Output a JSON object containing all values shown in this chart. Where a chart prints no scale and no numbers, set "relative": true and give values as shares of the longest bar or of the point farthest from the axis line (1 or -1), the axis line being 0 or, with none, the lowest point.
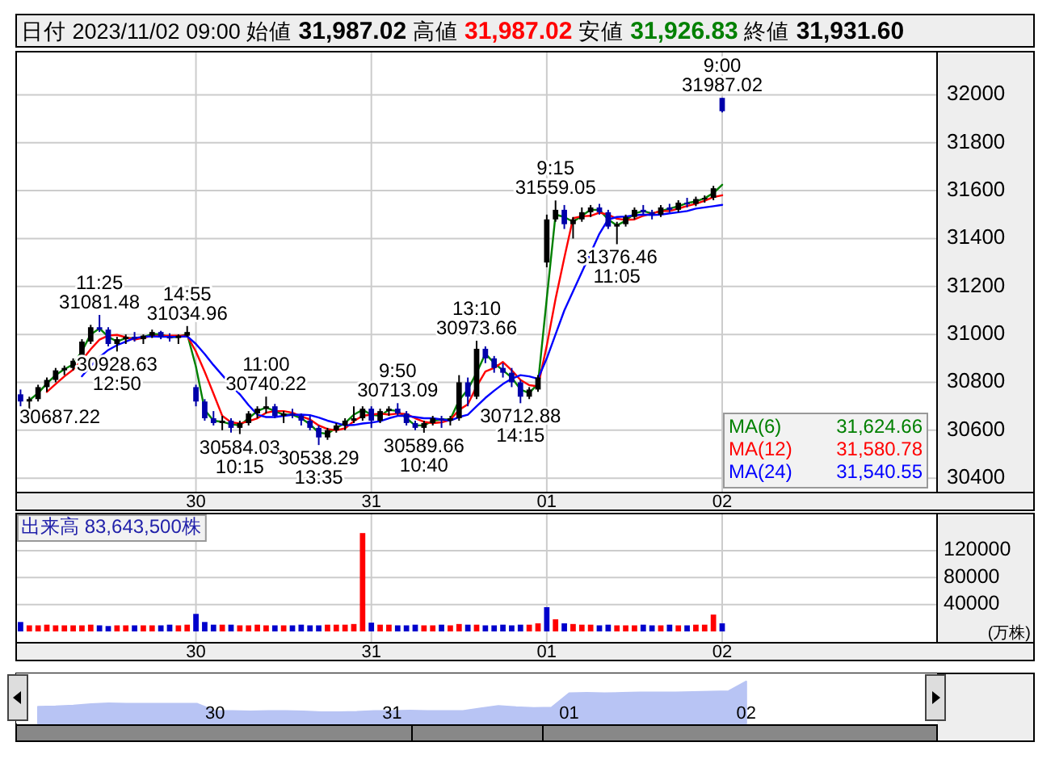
{
  "chart_data": [
    {
      "type": "candlestick",
      "title": "日付 2023/11/02 09:00 始値 31,987.02 高値 31,987.02 安値 31,926.83 終値 31,931.60",
      "categories": [
        null,
        null,
        null,
        null,
        null,
        null,
        null,
        null,
        null,
        null,
        null,
        null,
        null,
        null,
        null,
        null,
        null,
        null,
        null,
        null,
        "30",
        null,
        null,
        null,
        null,
        null,
        null,
        null,
        null,
        null,
        null,
        null,
        null,
        null,
        null,
        null,
        null,
        null,
        null,
        null,
        "31",
        null,
        null,
        null,
        null,
        null,
        null,
        null,
        null,
        null,
        null,
        null,
        null,
        null,
        null,
        null,
        null,
        null,
        null,
        null,
        "01",
        null,
        null,
        null,
        null,
        null,
        null,
        null,
        null,
        null,
        null,
        null,
        null,
        null,
        null,
        null,
        null,
        null,
        null,
        null,
        "02",
        null,
        null,
        null,
        null,
        null,
        null,
        null,
        null,
        null,
        null,
        null,
        null,
        null,
        null,
        null,
        null,
        null,
        null,
        null,
        null,
        null,
        null,
        null,
        null
      ],
      "ohlc": [
        [
          30750,
          30770,
          30700,
          30720
        ],
        [
          30720,
          30740,
          30687.22,
          30730
        ],
        [
          30730,
          30790,
          30720,
          30780
        ],
        [
          30780,
          30820,
          30760,
          30810
        ],
        [
          30810,
          30860,
          30800,
          30850
        ],
        [
          30850,
          30870,
          30830,
          30860
        ],
        [
          30860,
          30900,
          30850,
          30890
        ],
        [
          30890,
          30980,
          30880,
          30970
        ],
        [
          30970,
          31040,
          30960,
          31030
        ],
        [
          31030,
          31081.48,
          31010,
          31020
        ],
        [
          31020,
          31030,
          30950,
          30960
        ],
        [
          30960,
          30990,
          30928.63,
          30980
        ],
        [
          30980,
          31000,
          30960,
          30990
        ],
        [
          30990,
          31010,
          30970,
          30980
        ],
        [
          30980,
          31000,
          30960,
          30995
        ],
        [
          30995,
          31020,
          30985,
          31010
        ],
        [
          31010,
          31015,
          30980,
          30990
        ],
        [
          30990,
          31005,
          30970,
          30985
        ],
        [
          30985,
          31000,
          30960,
          30995
        ],
        [
          30995,
          31034.96,
          30990,
          31010
        ],
        [
          30780,
          30790,
          30700,
          30720
        ],
        [
          30720,
          30730,
          30640,
          30650
        ],
        [
          30650,
          30680,
          30620,
          30630
        ],
        [
          30630,
          30660,
          30600,
          30640
        ],
        [
          30640,
          30650,
          30590,
          30610
        ],
        [
          30610,
          30640,
          30584.03,
          30630
        ],
        [
          30630,
          30680,
          30620,
          30670
        ],
        [
          30670,
          30700,
          30650,
          30690
        ],
        [
          30690,
          30740.22,
          30670,
          30700
        ],
        [
          30700,
          30710,
          30650,
          30660
        ],
        [
          30660,
          30680,
          30630,
          30670
        ],
        [
          30670,
          30690,
          30650,
          30660
        ],
        [
          30660,
          30670,
          30620,
          30640
        ],
        [
          30640,
          30660,
          30600,
          30610
        ],
        [
          30610,
          30620,
          30538.29,
          30570
        ],
        [
          30570,
          30610,
          30560,
          30600
        ],
        [
          30600,
          30630,
          30590,
          30620
        ],
        [
          30620,
          30650,
          30600,
          30640
        ],
        [
          30640,
          30700,
          30630,
          30650
        ],
        [
          30650,
          30700,
          30640,
          30690
        ],
        [
          30690,
          30700,
          30610,
          30640
        ],
        [
          30640,
          30690,
          30630,
          30680
        ],
        [
          30680,
          30700,
          30660,
          30690
        ],
        [
          30690,
          30713.09,
          30660,
          30670
        ],
        [
          30670,
          30680,
          30620,
          30630
        ],
        [
          30630,
          30640,
          30600,
          30610
        ],
        [
          30610,
          30640,
          30589.66,
          30630
        ],
        [
          30630,
          30660,
          30620,
          30650
        ],
        [
          30650,
          30660,
          30610,
          30640
        ],
        [
          30640,
          30660,
          30620,
          30650
        ],
        [
          30650,
          30830,
          30640,
          30800
        ],
        [
          30800,
          30820,
          30700,
          30740
        ],
        [
          30740,
          30973.66,
          30730,
          30940
        ],
        [
          30940,
          30950,
          30880,
          30900
        ],
        [
          30900,
          30910,
          30840,
          30860
        ],
        [
          30860,
          30880,
          30820,
          30840
        ],
        [
          30840,
          30860,
          30780,
          30800
        ],
        [
          30800,
          30810,
          30712.88,
          30740
        ],
        [
          30740,
          30780,
          30730,
          30770
        ],
        [
          30770,
          30830,
          30760,
          30820
        ],
        [
          31300,
          31500,
          31280,
          31480
        ],
        [
          31480,
          31559.05,
          31470,
          31520
        ],
        [
          31520,
          31540,
          31440,
          31460
        ],
        [
          31460,
          31490,
          31400,
          31480
        ],
        [
          31480,
          31530,
          31470,
          31510
        ],
        [
          31510,
          31540,
          31490,
          31530
        ],
        [
          31530,
          31545,
          31500,
          31510
        ],
        [
          31510,
          31520,
          31440,
          31450
        ],
        [
          31450,
          31470,
          31376.46,
          31460
        ],
        [
          31460,
          31500,
          31450,
          31490
        ],
        [
          31490,
          31530,
          31480,
          31520
        ],
        [
          31520,
          31540,
          31500,
          31510
        ],
        [
          31510,
          31520,
          31480,
          31500
        ],
        [
          31500,
          31540,
          31490,
          31530
        ],
        [
          31530,
          31545,
          31510,
          31520
        ],
        [
          31520,
          31560,
          31510,
          31550
        ],
        [
          31550,
          31570,
          31530,
          31545
        ],
        [
          31545,
          31575,
          31535,
          31565
        ],
        [
          31565,
          31580,
          31550,
          31570
        ],
        [
          31570,
          31620,
          31560,
          31610
        ],
        [
          31987.02,
          31987.02,
          31926.83,
          31931.6
        ],
        null,
        null,
        null,
        null,
        null,
        null,
        null,
        null,
        null,
        null,
        null,
        null,
        null,
        null,
        null,
        null,
        null,
        null,
        null,
        null,
        null,
        null,
        null,
        null
      ],
      "colors": [
        "#0000aa",
        "#000000",
        "#000000",
        "#000000",
        "#000000",
        "#000000",
        "#000000",
        "#000000",
        "#000000",
        "#0000aa",
        "#0000aa",
        "#000000",
        "#000000",
        "#0000aa",
        "#000000",
        "#000000",
        "#0000aa",
        "#0000aa",
        "#000000",
        "#000000",
        "#0000aa",
        "#0000aa",
        "#0000aa",
        "#000000",
        "#0000aa",
        "#000000",
        "#000000",
        "#000000",
        "#000000",
        "#0000aa",
        "#000000",
        "#0000aa",
        "#0000aa",
        "#0000aa",
        "#0000aa",
        "#000000",
        "#000000",
        "#000000",
        "#000000",
        "#000000",
        "#0000aa",
        "#000000",
        "#000000",
        "#0000aa",
        "#0000aa",
        "#0000aa",
        "#000000",
        "#000000",
        "#0000aa",
        "#000000",
        "#000000",
        "#0000aa",
        "#000000",
        "#0000aa",
        "#0000aa",
        "#0000aa",
        "#0000aa",
        "#0000aa",
        "#000000",
        "#000000",
        "#000000",
        "#000000",
        "#0000aa",
        "#000000",
        "#000000",
        "#000000",
        "#0000aa",
        "#0000aa",
        "#000000",
        "#000000",
        "#000000",
        "#0000aa",
        "#0000aa",
        "#000000",
        "#0000aa",
        "#000000",
        "#0000aa",
        "#000000",
        "#000000",
        "#000000",
        "#0000aa",
        null,
        null,
        null,
        null,
        null,
        null,
        null,
        null,
        null,
        null,
        null,
        null,
        null,
        null,
        null,
        null,
        null,
        null,
        null,
        null,
        null,
        null,
        null,
        null
      ],
      "series": [
        {
          "type": "line",
          "name": "MA(6) 31,624.66",
          "color": "#008000",
          "values": [
            null,
            30725,
            30755,
            30795,
            30830,
            30855,
            30875,
            30930,
            31000,
            31025,
            30990,
            30970,
            30985,
            30985,
            30988,
            31002,
            31000,
            30988,
            30990,
            31002,
            30865,
            30685,
            30640,
            30635,
            30625,
            30620,
            30650,
            30680,
            30695,
            30680,
            30665,
            30665,
            30650,
            30625,
            30590,
            30585,
            30610,
            30630,
            30665,
            30685,
            30665,
            30660,
            30685,
            30680,
            30650,
            30620,
            30620,
            30640,
            30645,
            30645,
            30725,
            30770,
            30840,
            30920,
            30880,
            30850,
            30820,
            30770,
            30755,
            30795,
            31150,
            31500,
            31490,
            31470,
            31495,
            31520,
            31520,
            31480,
            31455,
            31475,
            31505,
            31515,
            31505,
            31515,
            31525,
            31535,
            31548,
            31555,
            31568,
            31590,
            31624.66,
            null,
            null,
            null,
            null,
            null,
            null,
            null,
            null,
            null,
            null,
            null,
            null,
            null,
            null,
            null,
            null,
            null,
            null,
            null,
            null,
            null,
            null,
            null,
            null
          ]
        },
        {
          "type": "line",
          "name": "MA(12) 31,580.78",
          "color": "#ff0000",
          "values": [
            null,
            null,
            null,
            30760,
            30793,
            30825,
            30853,
            30893,
            30938,
            30978,
            30995,
            30998,
            30988,
            30978,
            30986,
            30994,
            30994,
            30995,
            30995,
            30995,
            30928,
            30844,
            30753,
            30660,
            30633,
            30628,
            30638,
            30650,
            30673,
            30680,
            30680,
            30673,
            30658,
            30645,
            30620,
            30605,
            30600,
            30608,
            30638,
            30660,
            30665,
            30670,
            30665,
            30670,
            30668,
            30650,
            30635,
            30630,
            30633,
            30643,
            30685,
            30708,
            30783,
            30845,
            30860,
            30885,
            30850,
            30810,
            30788,
            30783,
            30953,
            31148,
            31320,
            31485,
            31493,
            31495,
            31508,
            31500,
            31483,
            31478,
            31480,
            31495,
            31505,
            31515,
            31515,
            31525,
            31536,
            31545,
            31558,
            31573,
            31580.78,
            null,
            null,
            null,
            null,
            null,
            null,
            null,
            null,
            null,
            null,
            null,
            null,
            null,
            null,
            null,
            null,
            null,
            null,
            null,
            null,
            null,
            null,
            null,
            null
          ]
        },
        {
          "type": "line",
          "name": "MA(24) 31,540.55",
          "color": "#0000ff",
          "values": [
            null,
            null,
            null,
            null,
            null,
            null,
            null,
            30825,
            30868,
            30905,
            30935,
            30955,
            30970,
            30985,
            30990,
            30992,
            30990,
            30990,
            30990,
            30992,
            30960,
            30918,
            30872,
            30830,
            30788,
            30750,
            30705,
            30665,
            30655,
            30655,
            30660,
            30664,
            30665,
            30663,
            30653,
            30640,
            30630,
            30620,
            30622,
            30628,
            30632,
            30638,
            30650,
            30660,
            30660,
            30655,
            30650,
            30650,
            30645,
            30640,
            30655,
            30665,
            30700,
            30735,
            30765,
            30793,
            30815,
            30830,
            30825,
            30815,
            30900,
            31000,
            31100,
            31180,
            31260,
            31340,
            31420,
            31480,
            31490,
            31492,
            31497,
            31500,
            31498,
            31500,
            31505,
            31510,
            31515,
            31525,
            31530,
            31535,
            31540.55,
            null,
            null,
            null,
            null,
            null,
            null,
            null,
            null,
            null,
            null,
            null,
            null,
            null,
            null,
            null,
            null,
            null,
            null,
            null,
            null,
            null,
            null,
            null,
            null
          ]
        }
      ],
      "ylim": [
        30340,
        32180
      ],
      "yticks": [
        30400,
        30600,
        30800,
        31000,
        31200,
        31400,
        31600,
        31800,
        32000
      ],
      "grid": true,
      "annotations": [
        "30687.22",
        {
          "text": "11:25\n31081.48",
          "y": 31081.48
        },
        {
          "text": "30928.63\n12:50",
          "y": 30928.63
        },
        {
          "text": "14:55\n31034.96",
          "y": 31034.96
        },
        {
          "text": "30584.03\n10:15",
          "y": 30584.03
        },
        {
          "text": "11:00\n30740.22",
          "y": 30740.22
        },
        {
          "text": "30538.29\n13:35",
          "y": 30538.29
        },
        {
          "text": "9:50\n30713.09",
          "y": 30713.09
        },
        {
          "text": "30589.66\n10:40",
          "y": 30589.66
        },
        {
          "text": "13:10\n30973.66",
          "y": 30973.66
        },
        {
          "text": "30712.88\n14:15",
          "y": 30712.88
        },
        {
          "text": "9:15\n31559.05",
          "y": 31559.05
        },
        {
          "text": "31376.46\n11:05",
          "y": 31376.46
        },
        {
          "text": "9:00\n31987.02",
          "y": 31987.02
        }
      ]
    },
    {
      "type": "bar",
      "title": "出来高 83,643,500株",
      "ylabel": "(万株)",
      "categories": [
        null,
        null,
        null,
        null,
        null,
        null,
        null,
        null,
        null,
        null,
        null,
        null,
        null,
        null,
        null,
        null,
        null,
        null,
        null,
        null,
        "30",
        null,
        null,
        null,
        null,
        null,
        null,
        null,
        null,
        null,
        null,
        null,
        null,
        null,
        null,
        null,
        null,
        null,
        null,
        null,
        "31",
        null,
        null,
        null,
        null,
        null,
        null,
        null,
        null,
        null,
        null,
        null,
        null,
        null,
        null,
        null,
        null,
        null,
        null,
        null,
        "01",
        null,
        null,
        null,
        null,
        null,
        null,
        null,
        null,
        null,
        null,
        null,
        null,
        null,
        null,
        null,
        null,
        null,
        null,
        null,
        "02",
        null,
        null,
        null,
        null,
        null,
        null,
        null,
        null,
        null,
        null,
        null,
        null,
        null,
        null,
        null,
        null,
        null,
        null,
        null,
        null,
        null,
        null,
        null,
        null
      ],
      "values": [
        14000,
        9000,
        9000,
        10000,
        9000,
        9000,
        9000,
        9000,
        10000,
        9000,
        8000,
        9000,
        9000,
        9000,
        9000,
        9000,
        9000,
        10000,
        9000,
        10000,
        26000,
        14000,
        10000,
        10000,
        10000,
        9000,
        9000,
        10000,
        9000,
        9000,
        9000,
        9000,
        10000,
        9000,
        9000,
        10000,
        10000,
        10000,
        11000,
        146000,
        13000,
        10000,
        10000,
        9000,
        9000,
        10000,
        9000,
        9000,
        10000,
        9000,
        11000,
        10000,
        10000,
        9000,
        9000,
        10000,
        9000,
        10000,
        10000,
        12000,
        36000,
        18000,
        12000,
        11000,
        10000,
        10000,
        9000,
        10000,
        9000,
        9000,
        9000,
        10000,
        9000,
        9000,
        10000,
        9000,
        9000,
        10000,
        10000,
        25000,
        12000,
        null,
        null,
        null,
        null,
        null,
        null,
        null,
        null,
        null,
        null,
        null,
        null,
        null,
        null,
        null,
        null,
        null,
        null,
        null,
        null,
        null,
        null,
        null,
        null
      ],
      "colors": [
        "#0000cc",
        "#ff0000",
        "#ff0000",
        "#ff0000",
        "#ff0000",
        "#ff0000",
        "#ff0000",
        "#ff0000",
        "#ff0000",
        "#0000cc",
        "#0000cc",
        "#ff0000",
        "#ff0000",
        "#0000cc",
        "#ff0000",
        "#ff0000",
        "#0000cc",
        "#0000cc",
        "#ff0000",
        "#ff0000",
        "#0000cc",
        "#0000cc",
        "#0000cc",
        "#ff0000",
        "#0000cc",
        "#ff0000",
        "#ff0000",
        "#ff0000",
        "#ff0000",
        "#0000cc",
        "#ff0000",
        "#0000cc",
        "#0000cc",
        "#0000cc",
        "#0000cc",
        "#ff0000",
        "#ff0000",
        "#ff0000",
        "#ff0000",
        "#ff0000",
        "#0000cc",
        "#ff0000",
        "#ff0000",
        "#0000cc",
        "#0000cc",
        "#0000cc",
        "#ff0000",
        "#ff0000",
        "#0000cc",
        "#ff0000",
        "#ff0000",
        "#0000cc",
        "#ff0000",
        "#0000cc",
        "#0000cc",
        "#0000cc",
        "#0000cc",
        "#0000cc",
        "#ff0000",
        "#ff0000",
        "#0000cc",
        "#ff0000",
        "#0000cc",
        "#ff0000",
        "#ff0000",
        "#ff0000",
        "#0000cc",
        "#0000cc",
        "#ff0000",
        "#ff0000",
        "#ff0000",
        "#0000cc",
        "#0000cc",
        "#ff0000",
        "#0000cc",
        "#ff0000",
        "#0000cc",
        "#ff0000",
        "#ff0000",
        "#ff0000",
        "#0000cc",
        null,
        null,
        null,
        null,
        null,
        null,
        null,
        null,
        null,
        null,
        null,
        null,
        null,
        null,
        null,
        null,
        null,
        null,
        null,
        null,
        null,
        null,
        null,
        null
      ],
      "ylim": [
        0,
        175000
      ],
      "yticks": [
        40000,
        80000,
        120000
      ],
      "grid": true
    },
    {
      "type": "area",
      "relative": true,
      "color": "#b8c4f4",
      "categories": [
        null,
        null,
        null,
        null,
        null,
        null,
        null,
        null,
        null,
        null,
        "30",
        null,
        null,
        null,
        null,
        null,
        null,
        null,
        null,
        null,
        "31",
        null,
        null,
        null,
        null,
        null,
        null,
        null,
        null,
        null,
        "01",
        null,
        null,
        null,
        null,
        null,
        null,
        null,
        null,
        null,
        "02",
        null,
        null,
        null,
        null,
        null,
        null,
        null,
        null,
        null,
        null
      ],
      "values": [
        0.4,
        0.41,
        0.43,
        0.46,
        0.48,
        0.47,
        0.47,
        0.47,
        0.47,
        0.47,
        0.3,
        0.3,
        0.29,
        0.3,
        0.3,
        0.29,
        0.27,
        0.27,
        0.28,
        0.3,
        0.3,
        0.31,
        0.3,
        0.3,
        0.3,
        0.36,
        0.42,
        0.39,
        0.37,
        0.38,
        0.72,
        0.73,
        0.72,
        0.73,
        0.74,
        0.74,
        0.74,
        0.75,
        0.76,
        0.77,
        1.0,
        null,
        null,
        null,
        null,
        null,
        null,
        null,
        null,
        null,
        null
      ]
    }
  ]
}
